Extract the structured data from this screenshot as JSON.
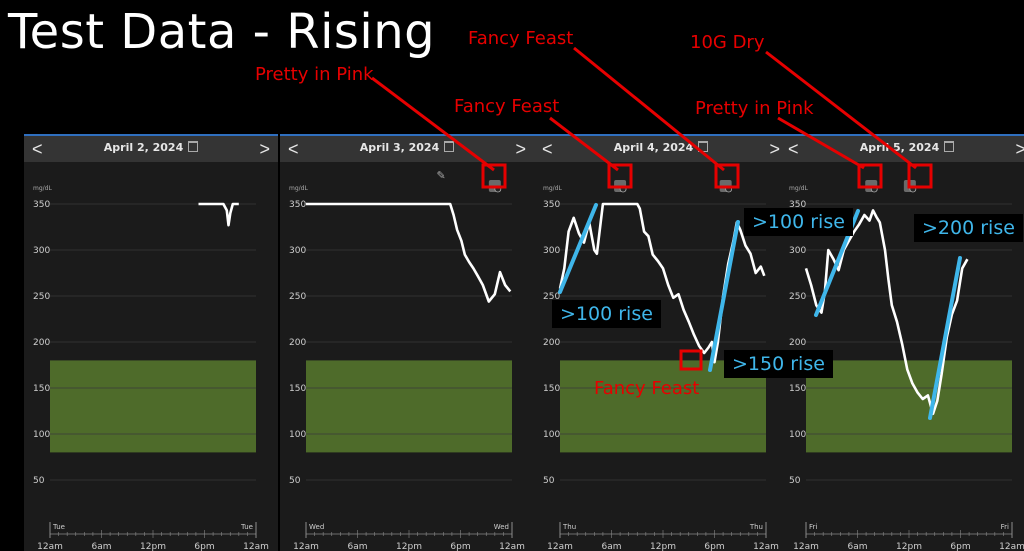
{
  "slide": {
    "title": "Test Data - Rising"
  },
  "colors": {
    "annotation": "#e60000",
    "rise": "#3fb6ea",
    "target_range": "#4e6b2a",
    "trace": "#ffffff",
    "header_accent": "#2f6fbf"
  },
  "icons": {
    "prev": "chevron-left-icon",
    "next": "chevron-right-icon",
    "calendar": "calendar-icon",
    "meal": "meal-event-icon",
    "edit": "pencil-icon"
  },
  "nav": {
    "prev_glyph": "<",
    "next_glyph": ">"
  },
  "axis": {
    "unit": "mg/dL",
    "y_ticks": [
      "350",
      "300",
      "250",
      "200",
      "150",
      "100",
      "50"
    ],
    "x_ticks": [
      "12am",
      "6am",
      "12pm",
      "6pm",
      "12am"
    ]
  },
  "panels": [
    {
      "date": "April 2, 2024",
      "day": "Tue",
      "day_end": "Tue"
    },
    {
      "date": "April 3, 2024",
      "day": "Wed",
      "day_end": "Wed"
    },
    {
      "date": "April 4, 2024",
      "day": "Thu",
      "day_end": "Thu"
    },
    {
      "date": "April 5, 2024",
      "day": "Fri",
      "day_end": "Fri"
    }
  ],
  "chart_data": [
    {
      "type": "line",
      "title": "April 2, 2024",
      "ylabel": "mg/dL",
      "ylim": [
        0,
        350
      ],
      "target_range": [
        80,
        180
      ],
      "series": [
        {
          "x": [
            17.3,
            20.2,
            20.6,
            20.8,
            21.0,
            21.3,
            22.0
          ],
          "y": [
            350,
            350,
            343,
            327,
            340,
            350,
            350
          ]
        }
      ]
    },
    {
      "type": "line",
      "title": "April 3, 2024",
      "ylabel": "mg/dL",
      "ylim": [
        0,
        350
      ],
      "target_range": [
        80,
        180
      ],
      "series": [
        {
          "x": [
            0,
            16.8,
            17.2,
            17.6,
            18.1,
            18.5,
            19.0,
            19.5,
            20.0,
            20.6,
            21.3,
            22.0,
            22.6,
            23.2,
            23.8
          ],
          "y": [
            350,
            350,
            338,
            322,
            310,
            295,
            287,
            280,
            272,
            262,
            244,
            252,
            276,
            262,
            255
          ]
        }
      ]
    },
    {
      "type": "line",
      "title": "April 4, 2024",
      "ylabel": "mg/dL",
      "ylim": [
        0,
        350
      ],
      "target_range": [
        80,
        180
      ],
      "series": [
        {
          "x": [
            0,
            0.5,
            1.0,
            1.6,
            2.2,
            2.8,
            3.4,
            4.0,
            4.3,
            5.0,
            6.0,
            7.0,
            8.0,
            9.0,
            9.3,
            9.8,
            10.3,
            10.8,
            11.4,
            12.0,
            12.6,
            13.2,
            13.8,
            14.4,
            15.0,
            15.6,
            16.2,
            16.8,
            17.3,
            17.7,
            18.0,
            18.4,
            19.0,
            19.6,
            20.2,
            20.6,
            21.0,
            21.6,
            22.2,
            22.8,
            23.4,
            23.8
          ],
          "y": [
            258,
            280,
            320,
            335,
            318,
            308,
            330,
            300,
            296,
            350,
            350,
            350,
            350,
            350,
            345,
            320,
            315,
            295,
            288,
            280,
            262,
            248,
            252,
            235,
            222,
            208,
            196,
            188,
            194,
            200,
            178,
            200,
            250,
            285,
            310,
            330,
            322,
            305,
            296,
            275,
            282,
            272
          ]
        }
      ]
    },
    {
      "type": "line",
      "title": "April 5, 2024",
      "ylabel": "mg/dL",
      "ylim": [
        0,
        350
      ],
      "target_range": [
        80,
        180
      ],
      "series": [
        {
          "x": [
            0,
            0.6,
            1.2,
            1.8,
            2.2,
            2.6,
            3.2,
            3.8,
            4.4,
            5.0,
            5.6,
            6.2,
            6.8,
            7.4,
            7.8,
            8.2,
            8.6,
            9.2,
            9.6,
            10.0,
            10.6,
            11.2,
            11.8,
            12.4,
            13.0,
            13.6,
            14.2,
            14.8,
            15.3,
            15.8,
            16.4,
            17.0,
            17.6,
            18.2,
            18.8
          ],
          "y": [
            280,
            262,
            240,
            232,
            255,
            300,
            290,
            278,
            300,
            310,
            320,
            328,
            338,
            332,
            343,
            336,
            330,
            300,
            268,
            240,
            222,
            198,
            170,
            155,
            145,
            138,
            142,
            122,
            136,
            165,
            205,
            230,
            245,
            280,
            290
          ]
        }
      ]
    }
  ],
  "annotations": {
    "top_fancy_feast": "Fancy Feast",
    "top_dry": "10G Dry",
    "pink_1": "Pretty in Pink",
    "fancy_feast_1": "Fancy Feast",
    "pink_2": "Pretty in Pink",
    "fancy_feast_low": "Fancy Feast",
    "rise_100_a": ">100 rise",
    "rise_100_b": ">100 rise",
    "rise_150": ">150 rise",
    "rise_200": ">200 rise"
  }
}
